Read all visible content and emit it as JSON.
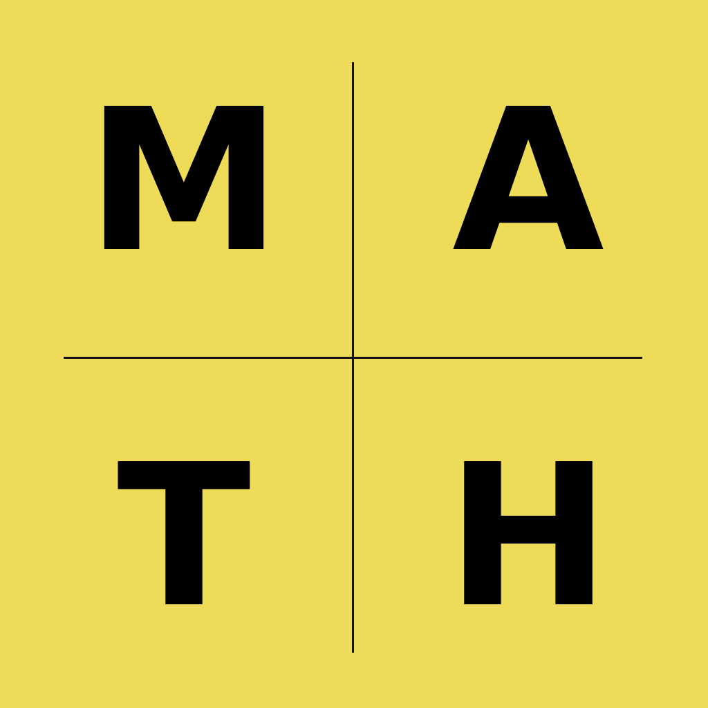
{
  "letters": {
    "top_left": "M",
    "top_right": "A",
    "bottom_left": "T",
    "bottom_right": "H"
  },
  "colors": {
    "background": "#EEDB57",
    "text": "#000000",
    "divider": "#111111"
  }
}
